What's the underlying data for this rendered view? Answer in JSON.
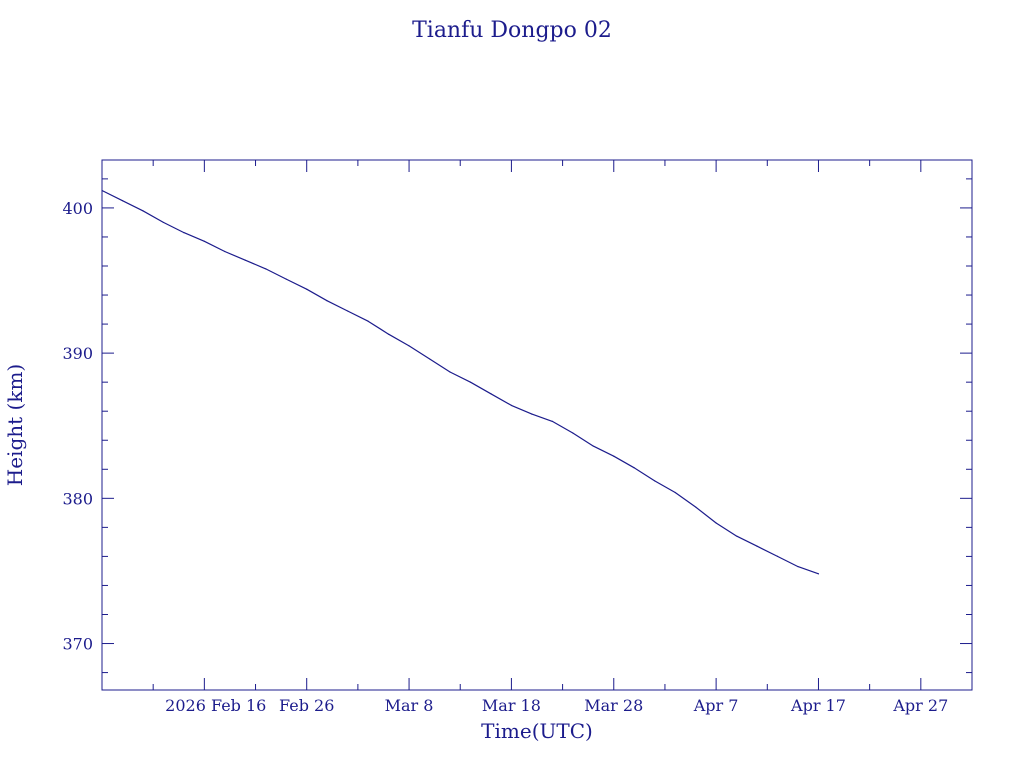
{
  "colors": {
    "ink": "#1c1c8c",
    "background": "#ffffff"
  },
  "chart_data": {
    "type": "line",
    "title": "Tianfu Dongpo 02",
    "xlabel": "Time(UTC)",
    "ylabel": "Height (km)",
    "x_scale": "time",
    "xlim": [
      "2026-02-06",
      "2026-05-02"
    ],
    "ylim": [
      366.8,
      403.3
    ],
    "grid": false,
    "legend": "none",
    "x_ticks": [
      {
        "date": "2026-02-16",
        "label": "2026 Feb 16"
      },
      {
        "date": "2026-02-26",
        "label": "Feb 26"
      },
      {
        "date": "2026-03-08",
        "label": "Mar  8"
      },
      {
        "date": "2026-03-18",
        "label": "Mar 18"
      },
      {
        "date": "2026-03-28",
        "label": "Mar 28"
      },
      {
        "date": "2026-04-07",
        "label": "Apr  7"
      },
      {
        "date": "2026-04-17",
        "label": "Apr 17"
      },
      {
        "date": "2026-04-27",
        "label": "Apr 27"
      }
    ],
    "y_ticks": [
      {
        "value": 370,
        "label": "370"
      },
      {
        "value": 380,
        "label": "380"
      },
      {
        "value": 390,
        "label": "390"
      },
      {
        "value": 400,
        "label": "400"
      }
    ],
    "series": [
      {
        "color": "#1c1c8c",
        "points": [
          {
            "x": "2026-02-06",
            "y": 401.2
          },
          {
            "x": "2026-02-08",
            "y": 400.5
          },
          {
            "x": "2026-02-10",
            "y": 399.8
          },
          {
            "x": "2026-02-12",
            "y": 399.0
          },
          {
            "x": "2026-02-14",
            "y": 398.3
          },
          {
            "x": "2026-02-16",
            "y": 397.7
          },
          {
            "x": "2026-02-18",
            "y": 397.0
          },
          {
            "x": "2026-02-20",
            "y": 396.4
          },
          {
            "x": "2026-02-22",
            "y": 395.8
          },
          {
            "x": "2026-02-24",
            "y": 395.1
          },
          {
            "x": "2026-02-26",
            "y": 394.4
          },
          {
            "x": "2026-02-28",
            "y": 393.6
          },
          {
            "x": "2026-03-02",
            "y": 392.9
          },
          {
            "x": "2026-03-04",
            "y": 392.2
          },
          {
            "x": "2026-03-06",
            "y": 391.3
          },
          {
            "x": "2026-03-08",
            "y": 390.5
          },
          {
            "x": "2026-03-10",
            "y": 389.6
          },
          {
            "x": "2026-03-12",
            "y": 388.7
          },
          {
            "x": "2026-03-14",
            "y": 388.0
          },
          {
            "x": "2026-03-16",
            "y": 387.2
          },
          {
            "x": "2026-03-18",
            "y": 386.4
          },
          {
            "x": "2026-03-20",
            "y": 385.8
          },
          {
            "x": "2026-03-22",
            "y": 385.3
          },
          {
            "x": "2026-03-24",
            "y": 384.5
          },
          {
            "x": "2026-03-26",
            "y": 383.6
          },
          {
            "x": "2026-03-28",
            "y": 382.9
          },
          {
            "x": "2026-03-30",
            "y": 382.1
          },
          {
            "x": "2026-04-01",
            "y": 381.2
          },
          {
            "x": "2026-04-03",
            "y": 380.4
          },
          {
            "x": "2026-04-05",
            "y": 379.4
          },
          {
            "x": "2026-04-07",
            "y": 378.3
          },
          {
            "x": "2026-04-09",
            "y": 377.4
          },
          {
            "x": "2026-04-11",
            "y": 376.7
          },
          {
            "x": "2026-04-13",
            "y": 376.0
          },
          {
            "x": "2026-04-15",
            "y": 375.3
          },
          {
            "x": "2026-04-17",
            "y": 374.8
          }
        ]
      }
    ]
  }
}
